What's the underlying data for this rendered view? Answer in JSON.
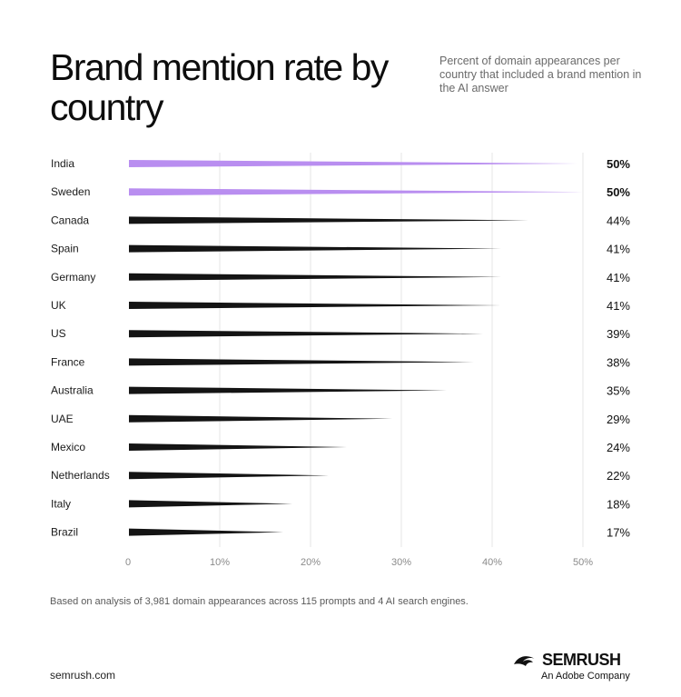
{
  "header": {
    "title": "Brand mention rate by country",
    "subtitle": "Percent of domain appearances per country that included a brand mention in  the AI answer"
  },
  "chart_data": {
    "type": "bar",
    "categories": [
      "India",
      "Sweden",
      "Canada",
      "Spain",
      "Germany",
      "UK",
      "US",
      "France",
      "Australia",
      "UAE",
      "Mexico",
      "Netherlands",
      "Italy",
      "Brazil"
    ],
    "values": [
      50,
      50,
      44,
      41,
      41,
      41,
      39,
      38,
      35,
      29,
      24,
      22,
      18,
      17
    ],
    "value_labels": [
      "50%",
      "50%",
      "44%",
      "41%",
      "41%",
      "41%",
      "39%",
      "38%",
      "35%",
      "29%",
      "24%",
      "22%",
      "18%",
      "17%"
    ],
    "highlighted": [
      true,
      true,
      false,
      false,
      false,
      false,
      false,
      false,
      false,
      false,
      false,
      false,
      false,
      false
    ],
    "xlim": [
      0,
      50
    ],
    "xticks": [
      "0",
      "10%",
      "20%",
      "30%",
      "40%",
      "50%"
    ],
    "grid": true,
    "colors": {
      "highlight": "#b98ef0",
      "default": "#141414",
      "grid": "#e6e6e6"
    }
  },
  "footer": {
    "note": "Based on analysis of 3,981 domain appearances across 115 prompts and 4 AI search engines.",
    "site": "semrush.com",
    "brand_name": "SEMRUSH",
    "brand_sub": "An Adobe Company"
  }
}
